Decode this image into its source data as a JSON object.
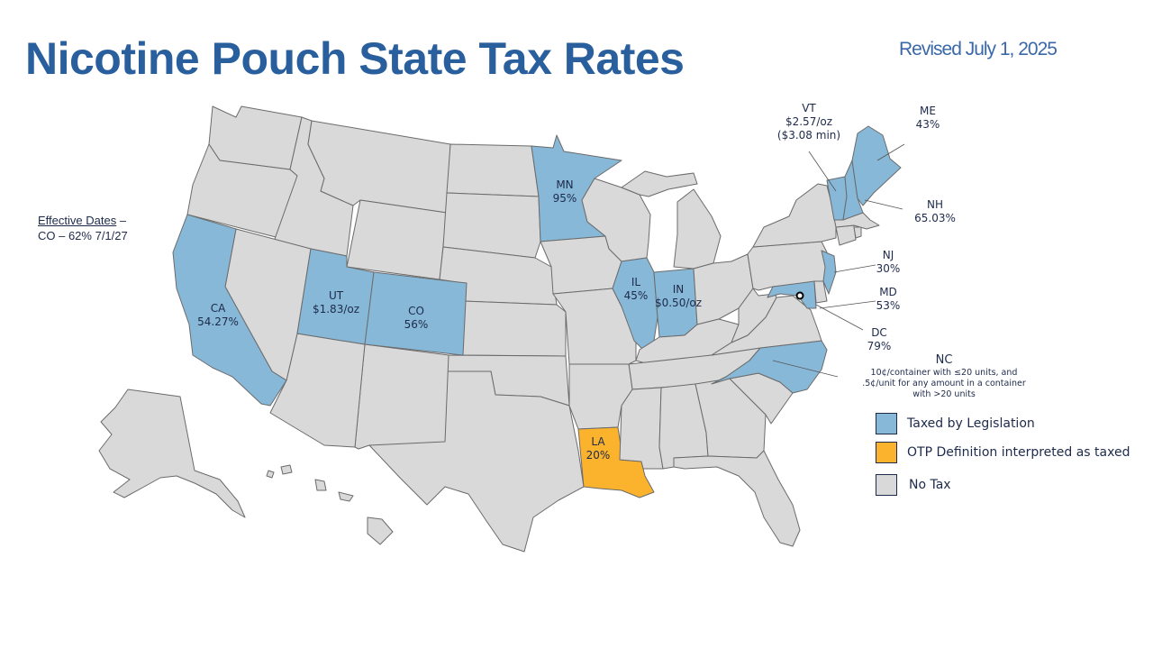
{
  "title": "Nicotine Pouch State Tax Rates",
  "revised": "Revised July 1, 2025",
  "effective_dates": {
    "heading": "Effective Dates",
    "dash": " –",
    "line": "CO – 62% 7/1/27"
  },
  "colors": {
    "taxed_by_legislation": "#87b8d8",
    "otp_interpreted_taxed": "#fbb22c",
    "no_tax": "#d9d9d9",
    "border": "#6b6b6b",
    "title": "#2a5f9e",
    "text": "#1d2a4a"
  },
  "states": {
    "ca": {
      "name": "CA",
      "rate": "54.27%",
      "status": "taxed_by_legislation"
    },
    "ut": {
      "name": "UT",
      "rate": "$1.83/oz",
      "status": "taxed_by_legislation"
    },
    "co": {
      "name": "CO",
      "rate": "56%",
      "status": "taxed_by_legislation"
    },
    "mn": {
      "name": "MN",
      "rate": "95%",
      "status": "taxed_by_legislation"
    },
    "il": {
      "name": "IL",
      "rate": "45%",
      "status": "taxed_by_legislation"
    },
    "in": {
      "name": "IN",
      "rate": "$0.50/oz",
      "status": "taxed_by_legislation"
    },
    "la": {
      "name": "LA",
      "rate": "20%",
      "status": "otp_interpreted_taxed"
    },
    "vt": {
      "name": "VT",
      "rate": "$2.57/oz",
      "rate_min": "($3.08 min)",
      "status": "taxed_by_legislation"
    },
    "me": {
      "name": "ME",
      "rate": "43%",
      "status": "taxed_by_legislation"
    },
    "nh": {
      "name": "NH",
      "rate": "65.03%",
      "status": "taxed_by_legislation"
    },
    "nj": {
      "name": "NJ",
      "rate": "30%",
      "status": "taxed_by_legislation"
    },
    "md": {
      "name": "MD",
      "rate": "53%",
      "status": "taxed_by_legislation"
    },
    "dc": {
      "name": "DC",
      "rate": "79%",
      "status": "taxed_by_legislation"
    },
    "nc": {
      "name": "NC",
      "rate_lines": [
        "10¢/container with ≤20 units, and",
        ".5¢/unit for any amount in a container",
        "with >20 units"
      ],
      "status": "taxed_by_legislation"
    }
  },
  "legend": [
    {
      "label": "Taxed by Legislation",
      "color": "#87b8d8"
    },
    {
      "label": "OTP Definition interpreted as taxed",
      "color": "#fbb22c"
    },
    {
      "label": "No Tax",
      "color": "#d9d9d9"
    }
  ]
}
